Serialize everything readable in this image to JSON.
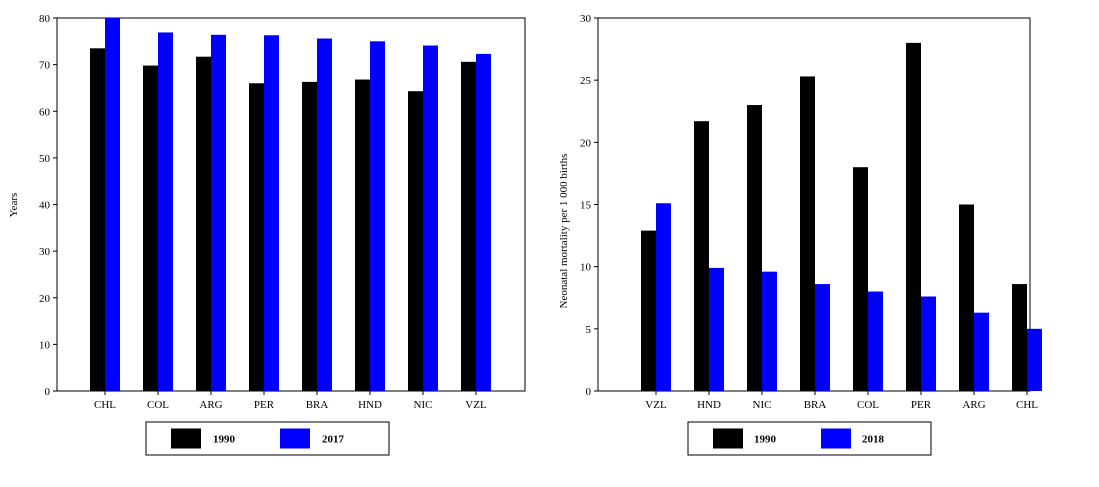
{
  "chart_data": [
    {
      "type": "bar",
      "title": "",
      "xlabel": "",
      "ylabel": "Years",
      "ylim": [
        0,
        80
      ],
      "yticks": [
        0,
        10,
        20,
        30,
        40,
        50,
        60,
        70,
        80
      ],
      "grid": false,
      "legend_position": "bottom",
      "categories": [
        "CHL",
        "COL",
        "ARG",
        "PER",
        "BRA",
        "HND",
        "NIC",
        "VZL"
      ],
      "series": [
        {
          "name": "1990",
          "color": "#000000",
          "values": [
            73.5,
            69.8,
            71.7,
            66.0,
            66.3,
            66.8,
            64.3,
            70.6
          ]
        },
        {
          "name": "2017",
          "color": "#0000ff",
          "values": [
            80.0,
            76.9,
            76.4,
            76.3,
            75.6,
            75.0,
            74.1,
            72.3
          ]
        }
      ]
    },
    {
      "type": "bar",
      "title": "",
      "xlabel": "",
      "ylabel": "Neonatal mortality per 1 000 births",
      "ylim": [
        0,
        30
      ],
      "yticks": [
        0,
        5,
        10,
        15,
        20,
        25,
        30
      ],
      "grid": false,
      "legend_position": "bottom",
      "categories": [
        "VZL",
        "HND",
        "NIC",
        "BRA",
        "COL",
        "PER",
        "ARG",
        "CHL"
      ],
      "series": [
        {
          "name": "1990",
          "color": "#000000",
          "values": [
            12.9,
            21.7,
            23.0,
            25.3,
            18.0,
            28.0,
            15.0,
            8.6
          ]
        },
        {
          "name": "2018",
          "color": "#0000ff",
          "values": [
            15.1,
            9.9,
            9.6,
            8.6,
            8.0,
            7.6,
            6.3,
            5.0
          ]
        }
      ]
    }
  ]
}
